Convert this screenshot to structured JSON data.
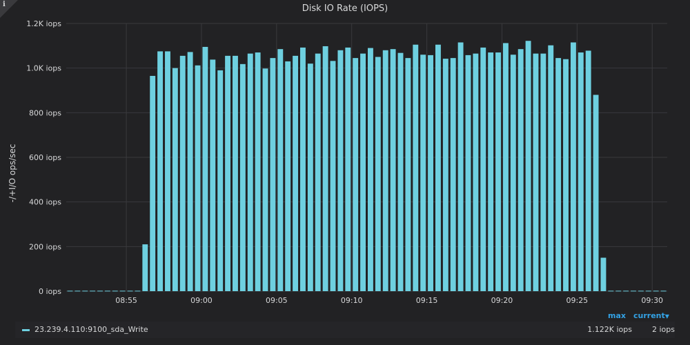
{
  "panel": {
    "title": "Disk IO Rate (IOPS)",
    "info_glyph": "i"
  },
  "legend": {
    "headers": {
      "max": "max",
      "current": "current"
    },
    "sort_caret_icon": "caret-down-icon",
    "items": [
      {
        "name": "23.239.4.110:9100_sda_Write",
        "color": "#6ed0e0",
        "max": "1.122K iops",
        "current": "2 iops"
      }
    ]
  },
  "chart_data": {
    "type": "bar",
    "title": "Disk IO Rate (IOPS)",
    "ylabel": "-/+I/O ops/sec",
    "xlabel": "",
    "ylim": [
      0,
      1200
    ],
    "y_ticks": [
      {
        "value": 0,
        "label": "0 iops"
      },
      {
        "value": 200,
        "label": "200 iops"
      },
      {
        "value": 400,
        "label": "400 iops"
      },
      {
        "value": 600,
        "label": "600 iops"
      },
      {
        "value": 800,
        "label": "800 iops"
      },
      {
        "value": 1000,
        "label": "1.0K iops"
      },
      {
        "value": 1200,
        "label": "1.2K iops"
      }
    ],
    "xlim": [
      "08:51:00",
      "09:31:00"
    ],
    "x_ticks": [
      "08:55",
      "09:00",
      "09:05",
      "09:10",
      "09:15",
      "09:20",
      "09:25",
      "09:30"
    ],
    "grid": true,
    "color": "#6ed0e0",
    "series": [
      {
        "name": "23.239.4.110:9100_sda_Write",
        "x": [
          "08:51:00",
          "08:51:30",
          "08:52:00",
          "08:52:30",
          "08:53:00",
          "08:53:30",
          "08:54:00",
          "08:54:30",
          "08:55:00",
          "08:55:30",
          "08:56:00",
          "08:56:30",
          "08:57:00",
          "08:57:30",
          "08:58:00",
          "08:58:30",
          "08:59:00",
          "08:59:30",
          "09:00:00",
          "09:00:30",
          "09:01:00",
          "09:01:30",
          "09:02:00",
          "09:02:30",
          "09:03:00",
          "09:03:30",
          "09:04:00",
          "09:04:30",
          "09:05:00",
          "09:05:30",
          "09:06:00",
          "09:06:30",
          "09:07:00",
          "09:07:30",
          "09:08:00",
          "09:08:30",
          "09:09:00",
          "09:09:30",
          "09:10:00",
          "09:10:30",
          "09:11:00",
          "09:11:30",
          "09:12:00",
          "09:12:30",
          "09:13:00",
          "09:13:30",
          "09:14:00",
          "09:14:30",
          "09:15:00",
          "09:15:30",
          "09:16:00",
          "09:16:30",
          "09:17:00",
          "09:17:30",
          "09:18:00",
          "09:18:30",
          "09:19:00",
          "09:19:30",
          "09:20:00",
          "09:20:30",
          "09:21:00",
          "09:21:30",
          "09:22:00",
          "09:22:30",
          "09:23:00",
          "09:23:30",
          "09:24:00",
          "09:24:30",
          "09:25:00",
          "09:25:30",
          "09:26:00",
          "09:26:30",
          "09:27:00",
          "09:27:30",
          "09:28:00",
          "09:28:30",
          "09:29:00",
          "09:29:30",
          "09:30:00",
          "09:30:30"
        ],
        "values": [
          2,
          2,
          2,
          2,
          2,
          2,
          2,
          2,
          2,
          2,
          210,
          965,
          1075,
          1075,
          1000,
          1055,
          1072,
          1012,
          1095,
          1038,
          990,
          1055,
          1055,
          1018,
          1065,
          1070,
          998,
          1045,
          1085,
          1030,
          1055,
          1092,
          1020,
          1065,
          1098,
          1032,
          1080,
          1092,
          1045,
          1065,
          1090,
          1050,
          1080,
          1085,
          1068,
          1045,
          1105,
          1060,
          1058,
          1105,
          1042,
          1045,
          1115,
          1058,
          1065,
          1092,
          1070,
          1070,
          1112,
          1060,
          1085,
          1122,
          1065,
          1065,
          1102,
          1045,
          1040,
          1115,
          1070,
          1078,
          880,
          150,
          2,
          2,
          2,
          2,
          2,
          2,
          2,
          2
        ]
      }
    ]
  }
}
